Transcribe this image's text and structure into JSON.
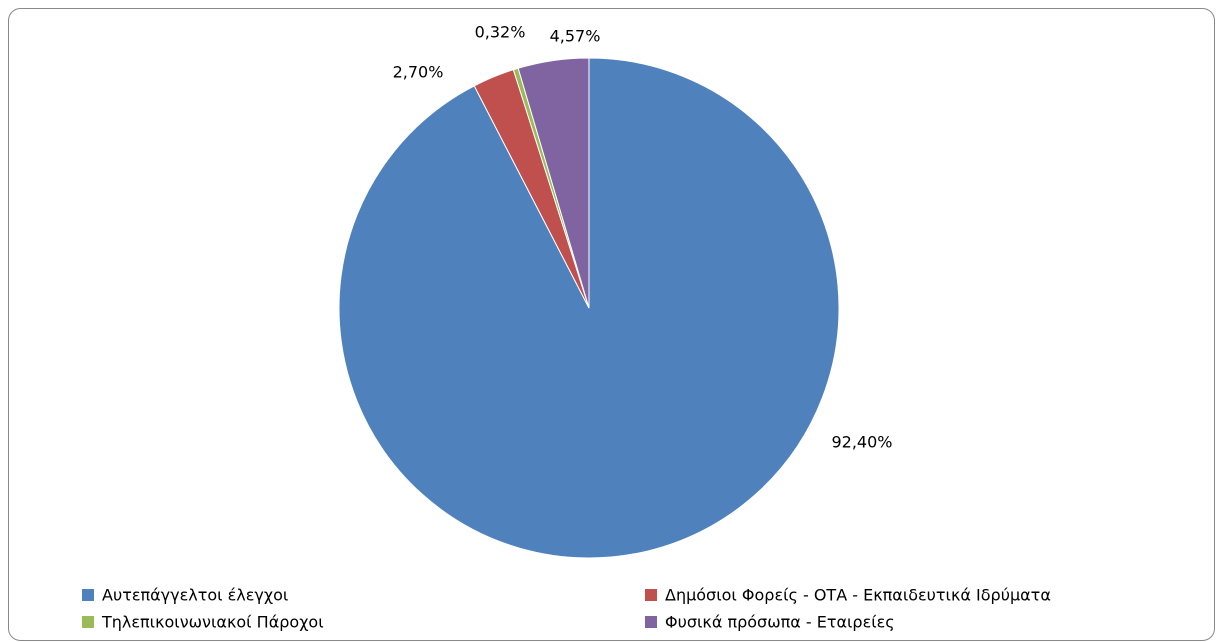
{
  "chart_data": {
    "type": "pie",
    "categories": [
      "Αυτεπάγγελτοι έλεγχοι",
      "Δημόσιοι Φορείς - ΟΤΑ - Εκπαιδευτικά Ιδρύματα",
      "Τηλεπικοινωνιακοί Πάροχοι",
      "Φυσικά πρόσωπα - Εταιρείες"
    ],
    "values": [
      92.4,
      2.7,
      0.32,
      4.57
    ],
    "value_labels": [
      "92,40%",
      "2,70%",
      "0,32%",
      "4,57%"
    ],
    "colors": [
      "#4f81bd",
      "#c0504d",
      "#9bbb59",
      "#8064a2"
    ],
    "legend": "bottom"
  }
}
